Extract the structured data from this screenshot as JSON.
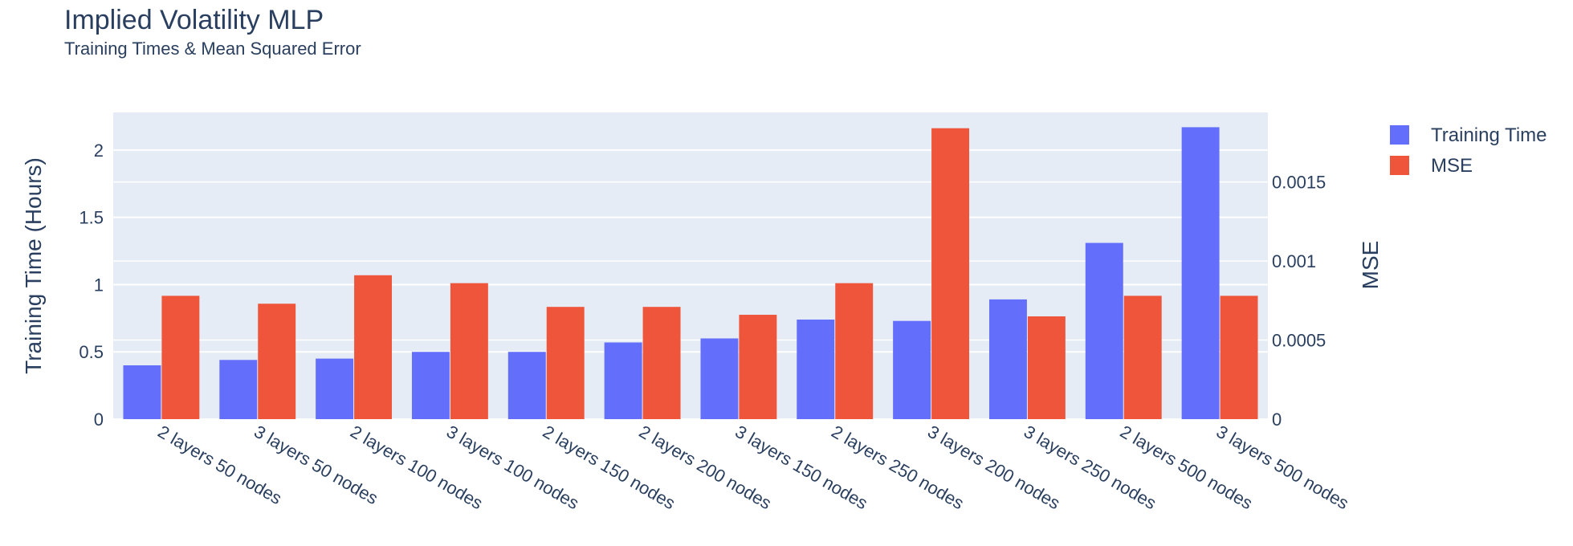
{
  "chart_data": {
    "type": "bar",
    "title": "Implied Volatility MLP",
    "subtitle": "Training Times & Mean Squared Error",
    "categories": [
      "2 layers 50 nodes",
      "3 layers 50 nodes",
      "2 layers 100 nodes",
      "3 layers 100 nodes",
      "2 layers 150 nodes",
      "2 layers 200 nodes",
      "3 layers 150 nodes",
      "2 layers 250 nodes",
      "3 layers 200 nodes",
      "3 layers 250 nodes",
      "2 layers 500 nodes",
      "3 layers 500 nodes"
    ],
    "series": [
      {
        "name": "Training Time",
        "axis": "y",
        "color": "#636efa",
        "values": [
          0.4,
          0.44,
          0.45,
          0.5,
          0.5,
          0.57,
          0.6,
          0.74,
          0.73,
          0.89,
          1.31,
          2.17
        ]
      },
      {
        "name": "MSE",
        "axis": "y2",
        "color": "#ef553b",
        "values": [
          0.00078,
          0.00073,
          0.00091,
          0.00086,
          0.00071,
          0.00071,
          0.00066,
          0.00086,
          0.00184,
          0.00065,
          0.00078,
          0.00078
        ]
      }
    ],
    "ylabel": "Training Time (Hours)",
    "y2label": "MSE",
    "ylim": [
      0,
      2.28
    ],
    "y2lim": [
      0,
      0.00194
    ],
    "yticks": [
      0,
      0.5,
      1,
      1.5,
      2
    ],
    "yticklabels": [
      "0",
      "0.5",
      "1",
      "1.5",
      "2"
    ],
    "y2ticks": [
      0,
      0.0005,
      0.001,
      0.0015
    ],
    "y2ticklabels": [
      "0",
      "0.0005",
      "0.001",
      "0.0015"
    ],
    "grid": true,
    "plot_bgcolor": "#e5ecf6",
    "legend_position": "top-right"
  }
}
